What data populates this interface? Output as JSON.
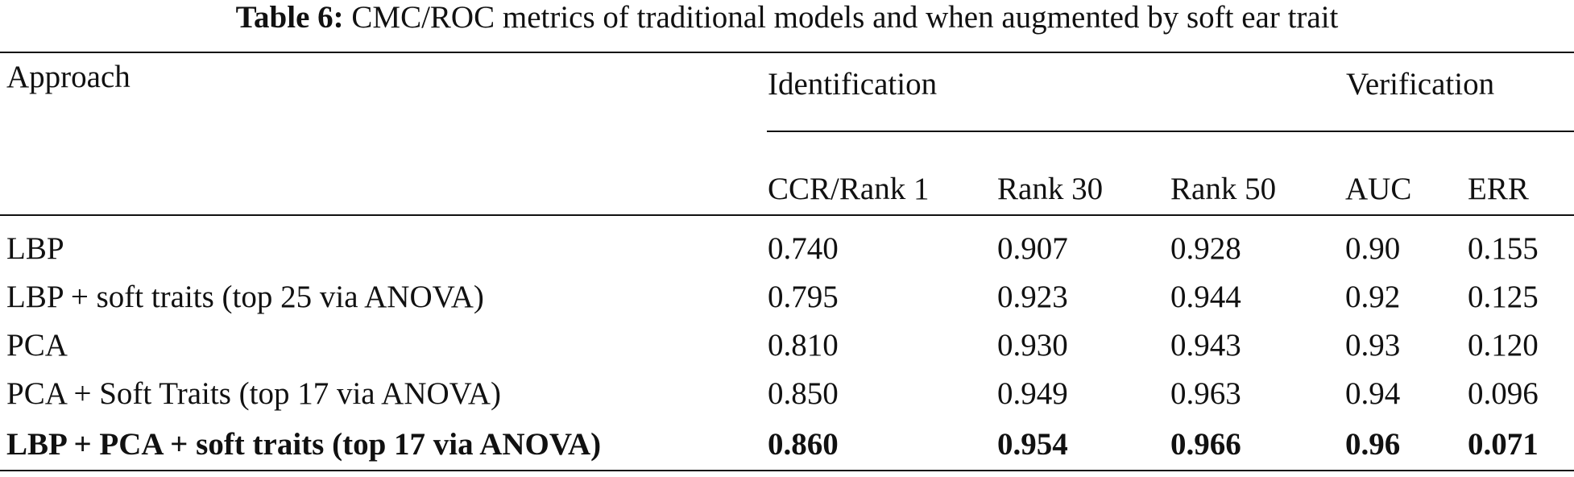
{
  "caption": {
    "label": "Table 6:",
    "text": "CMC/ROC metrics of traditional models and when augmented by soft ear trait"
  },
  "header": {
    "approach": "Approach",
    "identification": "Identification",
    "verification": "Verification",
    "columns": [
      "CCR/Rank 1",
      "Rank 30",
      "Rank 50",
      "AUC",
      "ERR"
    ]
  },
  "rows": [
    {
      "approach": "LBP",
      "ccr_rank1": "0.740",
      "rank30": "0.907",
      "rank50": "0.928",
      "auc": "0.90",
      "err": "0.155",
      "bold": false
    },
    {
      "approach": "LBP + soft traits (top 25 via ANOVA)",
      "ccr_rank1": "0.795",
      "rank30": "0.923",
      "rank50": "0.944",
      "auc": "0.92",
      "err": "0.125",
      "bold": false
    },
    {
      "approach": "PCA",
      "ccr_rank1": "0.810",
      "rank30": "0.930",
      "rank50": "0.943",
      "auc": "0.93",
      "err": "0.120",
      "bold": false
    },
    {
      "approach": "PCA + Soft Traits (top 17 via ANOVA)",
      "ccr_rank1": "0.850",
      "rank30": "0.949",
      "rank50": "0.963",
      "auc": "0.94",
      "err": "0.096",
      "bold": false
    },
    {
      "approach": "LBP + PCA + soft traits (top 17 via ANOVA)",
      "ccr_rank1": "0.860",
      "rank30": "0.954",
      "rank50": "0.966",
      "auc": "0.96",
      "err": "0.071",
      "bold": true
    }
  ]
}
